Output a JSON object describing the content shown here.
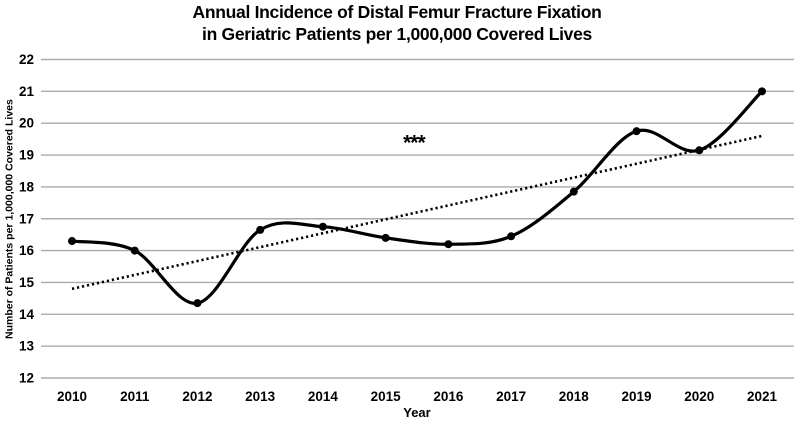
{
  "figure": {
    "background": "#ffffff",
    "text_color": "#000000"
  },
  "chart_data": {
    "type": "line",
    "title": "Annual Incidence of Distal Femur Fracture Fixation in Geriatric Patients per 1,000,000 Covered Lives",
    "title_lines": [
      "Annual Incidence of Distal Femur Fracture Fixation",
      "in Geriatric Patients per 1,000,000 Covered Lives"
    ],
    "xlabel": "Year",
    "ylabel": "Number of Patients per 1,000,000 Covered Lives",
    "categories": [
      "2010",
      "2011",
      "2012",
      "2013",
      "2014",
      "2015",
      "2016",
      "2017",
      "2018",
      "2019",
      "2020",
      "2021"
    ],
    "series": [
      {
        "name": "annual-incidence",
        "style": "smooth-line-with-markers",
        "marker": "filled-circle",
        "color": "#000000",
        "values": [
          16.3,
          16.0,
          14.35,
          16.65,
          16.75,
          16.4,
          16.2,
          16.45,
          17.85,
          19.75,
          19.15,
          21.0
        ]
      },
      {
        "name": "linear-trend",
        "style": "dotted-line",
        "color": "#000000",
        "x": [
          2010,
          2021
        ],
        "values": [
          14.8,
          19.6
        ]
      }
    ],
    "ylim": [
      12,
      22
    ],
    "yticks": [
      12,
      13,
      14,
      15,
      16,
      17,
      18,
      19,
      20,
      21,
      22
    ],
    "grid": "horizontal",
    "grid_color": "#ababab",
    "legend": "none",
    "annotations": [
      {
        "text": "***",
        "x": 2015.45,
        "y": 19.5
      }
    ]
  }
}
